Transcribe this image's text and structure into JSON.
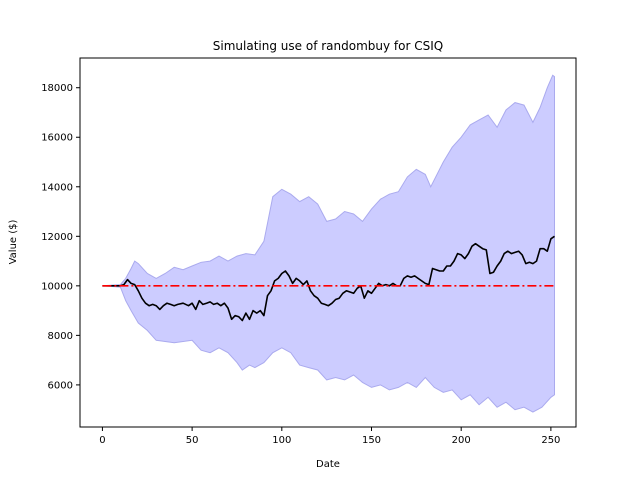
{
  "chart_data": {
    "type": "line",
    "title": "Simulating use of randombuy for CSIQ",
    "xlabel": "Date",
    "ylabel": "Value ($)",
    "xlim": [
      -12.5,
      264
    ],
    "ylim": [
      4300,
      19200
    ],
    "xticks": [
      0,
      50,
      100,
      150,
      200,
      250
    ],
    "yticks": [
      6000,
      8000,
      10000,
      12000,
      14000,
      16000,
      18000
    ],
    "grid": false,
    "series": [
      {
        "kind": "band",
        "color": "#ccccff",
        "edge_color": "#aaaaee",
        "upper": [
          [
            0,
            10000
          ],
          [
            10,
            10050
          ],
          [
            13,
            10300
          ],
          [
            16,
            10700
          ],
          [
            18,
            11000
          ],
          [
            20,
            10900
          ],
          [
            25,
            10500
          ],
          [
            30,
            10300
          ],
          [
            35,
            10500
          ],
          [
            40,
            10750
          ],
          [
            45,
            10650
          ],
          [
            50,
            10800
          ],
          [
            55,
            10950
          ],
          [
            60,
            11000
          ],
          [
            65,
            11200
          ],
          [
            70,
            11000
          ],
          [
            75,
            11200
          ],
          [
            80,
            11300
          ],
          [
            85,
            11250
          ],
          [
            90,
            11800
          ],
          [
            95,
            13600
          ],
          [
            100,
            13900
          ],
          [
            105,
            13700
          ],
          [
            110,
            13400
          ],
          [
            115,
            13600
          ],
          [
            120,
            13300
          ],
          [
            125,
            12600
          ],
          [
            130,
            12700
          ],
          [
            135,
            13000
          ],
          [
            140,
            12900
          ],
          [
            145,
            12600
          ],
          [
            150,
            13100
          ],
          [
            155,
            13500
          ],
          [
            160,
            13700
          ],
          [
            165,
            13800
          ],
          [
            170,
            14400
          ],
          [
            175,
            14700
          ],
          [
            180,
            14500
          ],
          [
            183,
            14000
          ],
          [
            190,
            15000
          ],
          [
            195,
            15600
          ],
          [
            200,
            16000
          ],
          [
            205,
            16500
          ],
          [
            210,
            16700
          ],
          [
            215,
            16900
          ],
          [
            220,
            16400
          ],
          [
            225,
            17100
          ],
          [
            230,
            17400
          ],
          [
            235,
            17300
          ],
          [
            240,
            16600
          ],
          [
            244,
            17200
          ],
          [
            248,
            18000
          ],
          [
            251,
            18500
          ],
          [
            252,
            18450
          ]
        ],
        "lower": [
          [
            0,
            10000
          ],
          [
            10,
            9950
          ],
          [
            13,
            9400
          ],
          [
            16,
            9000
          ],
          [
            20,
            8500
          ],
          [
            25,
            8200
          ],
          [
            30,
            7800
          ],
          [
            40,
            7700
          ],
          [
            50,
            7800
          ],
          [
            55,
            7400
          ],
          [
            60,
            7300
          ],
          [
            65,
            7500
          ],
          [
            70,
            7300
          ],
          [
            75,
            6900
          ],
          [
            78,
            6600
          ],
          [
            82,
            6800
          ],
          [
            85,
            6700
          ],
          [
            90,
            6900
          ],
          [
            95,
            7300
          ],
          [
            100,
            7500
          ],
          [
            105,
            7300
          ],
          [
            110,
            6800
          ],
          [
            115,
            6700
          ],
          [
            120,
            6600
          ],
          [
            125,
            6200
          ],
          [
            130,
            6300
          ],
          [
            135,
            6200
          ],
          [
            140,
            6400
          ],
          [
            145,
            6100
          ],
          [
            150,
            5900
          ],
          [
            155,
            6000
          ],
          [
            160,
            5800
          ],
          [
            165,
            5900
          ],
          [
            170,
            6100
          ],
          [
            175,
            5900
          ],
          [
            180,
            6300
          ],
          [
            185,
            5900
          ],
          [
            190,
            5700
          ],
          [
            195,
            5800
          ],
          [
            200,
            5400
          ],
          [
            205,
            5600
          ],
          [
            210,
            5200
          ],
          [
            215,
            5500
          ],
          [
            220,
            5100
          ],
          [
            225,
            5300
          ],
          [
            230,
            5000
          ],
          [
            235,
            5100
          ],
          [
            240,
            4900
          ],
          [
            245,
            5100
          ],
          [
            250,
            5500
          ],
          [
            252,
            5600
          ]
        ]
      },
      {
        "kind": "line",
        "color": "#000000",
        "points": [
          [
            0,
            10000
          ],
          [
            10,
            10000
          ],
          [
            12,
            10050
          ],
          [
            14,
            10250
          ],
          [
            16,
            10100
          ],
          [
            18,
            10050
          ],
          [
            20,
            9800
          ],
          [
            22,
            9500
          ],
          [
            24,
            9300
          ],
          [
            26,
            9200
          ],
          [
            28,
            9250
          ],
          [
            30,
            9200
          ],
          [
            32,
            9050
          ],
          [
            34,
            9200
          ],
          [
            36,
            9300
          ],
          [
            38,
            9250
          ],
          [
            40,
            9200
          ],
          [
            42,
            9250
          ],
          [
            45,
            9300
          ],
          [
            48,
            9200
          ],
          [
            50,
            9300
          ],
          [
            52,
            9050
          ],
          [
            54,
            9400
          ],
          [
            56,
            9250
          ],
          [
            58,
            9300
          ],
          [
            60,
            9350
          ],
          [
            62,
            9250
          ],
          [
            64,
            9300
          ],
          [
            66,
            9200
          ],
          [
            68,
            9300
          ],
          [
            70,
            9100
          ],
          [
            72,
            8650
          ],
          [
            74,
            8800
          ],
          [
            76,
            8750
          ],
          [
            78,
            8600
          ],
          [
            80,
            8900
          ],
          [
            82,
            8650
          ],
          [
            84,
            9000
          ],
          [
            86,
            8900
          ],
          [
            88,
            9000
          ],
          [
            90,
            8800
          ],
          [
            92,
            9600
          ],
          [
            94,
            9800
          ],
          [
            96,
            10200
          ],
          [
            98,
            10300
          ],
          [
            100,
            10500
          ],
          [
            102,
            10600
          ],
          [
            104,
            10400
          ],
          [
            106,
            10100
          ],
          [
            108,
            10300
          ],
          [
            110,
            10200
          ],
          [
            112,
            10050
          ],
          [
            114,
            10200
          ],
          [
            116,
            9800
          ],
          [
            118,
            9600
          ],
          [
            120,
            9500
          ],
          [
            122,
            9300
          ],
          [
            124,
            9250
          ],
          [
            126,
            9200
          ],
          [
            128,
            9300
          ],
          [
            130,
            9450
          ],
          [
            132,
            9500
          ],
          [
            134,
            9700
          ],
          [
            136,
            9800
          ],
          [
            138,
            9750
          ],
          [
            140,
            9700
          ],
          [
            142,
            9900
          ],
          [
            144,
            10000
          ],
          [
            146,
            9500
          ],
          [
            148,
            9800
          ],
          [
            150,
            9700
          ],
          [
            152,
            9900
          ],
          [
            154,
            10100
          ],
          [
            156,
            10000
          ],
          [
            158,
            10050
          ],
          [
            160,
            10000
          ],
          [
            162,
            10100
          ],
          [
            164,
            10000
          ],
          [
            166,
            10000
          ],
          [
            168,
            10300
          ],
          [
            170,
            10400
          ],
          [
            172,
            10350
          ],
          [
            174,
            10400
          ],
          [
            176,
            10300
          ],
          [
            178,
            10200
          ],
          [
            180,
            10100
          ],
          [
            182,
            10050
          ],
          [
            184,
            10700
          ],
          [
            186,
            10650
          ],
          [
            188,
            10600
          ],
          [
            190,
            10600
          ],
          [
            192,
            10800
          ],
          [
            194,
            10800
          ],
          [
            196,
            11000
          ],
          [
            198,
            11300
          ],
          [
            200,
            11250
          ],
          [
            202,
            11100
          ],
          [
            204,
            11300
          ],
          [
            206,
            11600
          ],
          [
            208,
            11700
          ],
          [
            210,
            11600
          ],
          [
            212,
            11500
          ],
          [
            214,
            11450
          ],
          [
            216,
            10500
          ],
          [
            218,
            10550
          ],
          [
            220,
            10800
          ],
          [
            222,
            11000
          ],
          [
            224,
            11300
          ],
          [
            226,
            11400
          ],
          [
            228,
            11300
          ],
          [
            230,
            11350
          ],
          [
            232,
            11400
          ],
          [
            234,
            11250
          ],
          [
            236,
            10900
          ],
          [
            238,
            10950
          ],
          [
            240,
            10900
          ],
          [
            242,
            11000
          ],
          [
            244,
            11500
          ],
          [
            246,
            11500
          ],
          [
            248,
            11400
          ],
          [
            250,
            11900
          ],
          [
            252,
            12000
          ]
        ]
      },
      {
        "kind": "reference",
        "color": "#ff0000",
        "style": "dash-dot",
        "points": [
          [
            0,
            10000
          ],
          [
            252,
            10000
          ]
        ]
      }
    ]
  }
}
